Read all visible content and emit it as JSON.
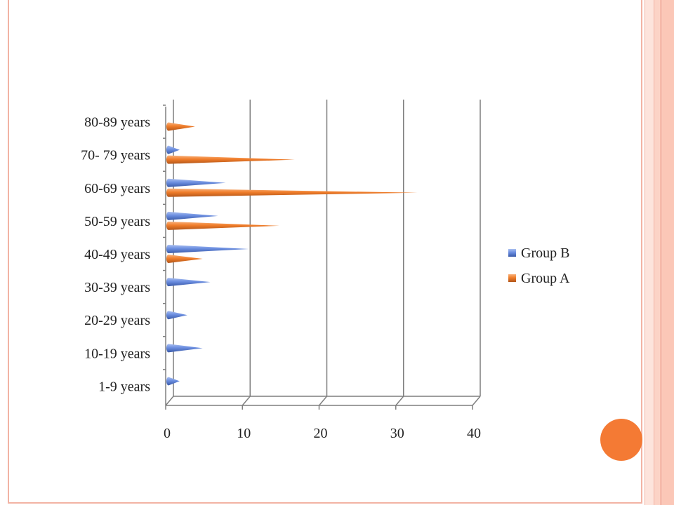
{
  "chart_data": {
    "type": "bar",
    "orientation": "horizontal",
    "style": "3d-cone",
    "categories": [
      "1-9 years",
      "10-19 years",
      "20-29 years",
      "30-39 years",
      "40-49 years",
      "50-59 years",
      "60-69 years",
      "70- 79 years",
      "80-89 years"
    ],
    "series": [
      {
        "name": "Group B",
        "color": "#5b7fd6",
        "values": [
          1,
          4,
          2,
          5,
          10,
          6,
          7,
          1,
          0
        ]
      },
      {
        "name": "Group A",
        "color": "#f07d2a",
        "values": [
          0,
          0,
          0,
          0,
          4,
          14,
          32,
          16,
          3
        ]
      }
    ],
    "xlim": [
      0,
      40
    ],
    "xticks": [
      "0",
      "10",
      "20",
      "30",
      "40"
    ],
    "grid": true,
    "legend_position": "right"
  },
  "colors": {
    "accent_circle": "#f47a34",
    "slide_border": "#f2b3a4"
  }
}
